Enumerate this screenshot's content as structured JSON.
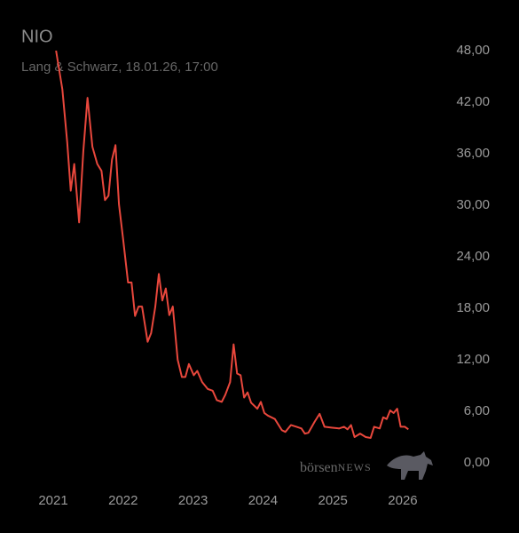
{
  "chart_data": {
    "type": "line",
    "title": "NIO",
    "subtitle": "Lang & Schwarz, 18.01.26, 17:00",
    "watermark": [
      "börsen",
      "NEWS"
    ],
    "series": [
      {
        "name": "NIO",
        "color": "#e8473c",
        "x": [
          2021.04,
          2021.13,
          2021.2,
          2021.25,
          2021.3,
          2021.37,
          2021.43,
          2021.49,
          2021.56,
          2021.63,
          2021.69,
          2021.74,
          2021.79,
          2021.84,
          2021.89,
          2021.94,
          2022.0,
          2022.07,
          2022.12,
          2022.17,
          2022.22,
          2022.27,
          2022.35,
          2022.4,
          2022.46,
          2022.51,
          2022.56,
          2022.61,
          2022.66,
          2022.71,
          2022.78,
          2022.84,
          2022.89,
          2022.94,
          2023.01,
          2023.06,
          2023.13,
          2023.21,
          2023.28,
          2023.34,
          2023.41,
          2023.46,
          2023.53,
          2023.58,
          2023.63,
          2023.68,
          2023.73,
          2023.78,
          2023.83,
          2023.92,
          2023.97,
          2024.02,
          2024.07,
          2024.17,
          2024.27,
          2024.32,
          2024.4,
          2024.48,
          2024.55,
          2024.6,
          2024.65,
          2024.74,
          2024.81,
          2024.88,
          2024.98,
          2025.09,
          2025.16,
          2025.21,
          2025.26,
          2025.31,
          2025.39,
          2025.47,
          2025.54,
          2025.59,
          2025.67,
          2025.72,
          2025.77,
          2025.82,
          2025.87,
          2025.92,
          2025.97,
          2026.03,
          2026.08
        ],
        "values": [
          48.0,
          43.5,
          37.3,
          31.7,
          34.8,
          28.0,
          36.3,
          42.5,
          36.8,
          34.8,
          34.0,
          30.6,
          31.1,
          35.3,
          37.0,
          30.1,
          26.0,
          21.0,
          21.0,
          17.1,
          18.2,
          18.2,
          14.1,
          15.1,
          18.2,
          22.0,
          18.9,
          20.3,
          17.2,
          18.2,
          12.0,
          10.0,
          10.0,
          11.5,
          10.2,
          10.7,
          9.4,
          8.6,
          8.4,
          7.3,
          7.1,
          7.9,
          9.4,
          13.8,
          10.4,
          10.2,
          7.6,
          8.2,
          7.0,
          6.3,
          7.1,
          5.8,
          5.5,
          5.1,
          3.8,
          3.6,
          4.4,
          4.2,
          4.0,
          3.4,
          3.5,
          4.8,
          5.7,
          4.2,
          4.1,
          4.0,
          4.2,
          3.9,
          4.4,
          3.0,
          3.4,
          3.0,
          2.9,
          4.2,
          4.0,
          5.3,
          5.1,
          6.1,
          5.8,
          6.3,
          4.2,
          4.2,
          3.9
        ]
      }
    ],
    "xlim": [
      2020.7,
      2026.4
    ],
    "xticks": [
      2021,
      2022,
      2023,
      2024,
      2025,
      2026
    ],
    "ylim": [
      0,
      48
    ],
    "yticks": [
      {
        "value": 0,
        "label": "0,00"
      },
      {
        "value": 6,
        "label": "6,00"
      },
      {
        "value": 12,
        "label": "12,00"
      },
      {
        "value": 18,
        "label": "18,00"
      },
      {
        "value": 24,
        "label": "24,00"
      },
      {
        "value": 30,
        "label": "30,00"
      },
      {
        "value": 36,
        "label": "36,00"
      },
      {
        "value": 42,
        "label": "42,00"
      },
      {
        "value": 48,
        "label": "48,00"
      }
    ],
    "grid": false
  }
}
